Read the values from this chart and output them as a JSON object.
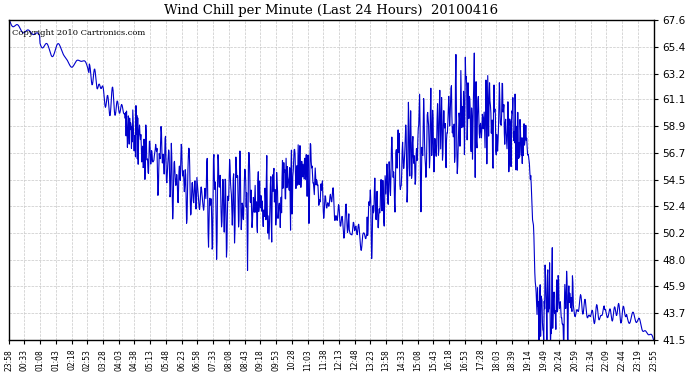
{
  "title": "Wind Chill per Minute (Last 24 Hours)  20100416",
  "copyright_text": "Copyright 2010 Cartronics.com",
  "line_color": "#0000CC",
  "background_color": "#ffffff",
  "grid_color": "#c8c8c8",
  "ylim": [
    41.5,
    67.6
  ],
  "yticks": [
    41.5,
    43.7,
    45.9,
    48.0,
    50.2,
    52.4,
    54.5,
    56.7,
    58.9,
    61.1,
    63.2,
    65.4,
    67.6
  ],
  "total_minutes": 1440,
  "x_tick_labels": [
    "23:58",
    "00:33",
    "01:08",
    "01:43",
    "02:18",
    "02:53",
    "03:28",
    "04:03",
    "04:38",
    "05:13",
    "05:48",
    "06:23",
    "06:58",
    "07:33",
    "08:08",
    "08:43",
    "09:18",
    "09:53",
    "10:28",
    "11:03",
    "11:38",
    "12:13",
    "12:48",
    "13:23",
    "13:58",
    "14:33",
    "15:08",
    "15:43",
    "16:18",
    "16:53",
    "17:28",
    "18:03",
    "18:39",
    "19:14",
    "19:49",
    "20:24",
    "20:59",
    "21:34",
    "22:09",
    "22:44",
    "23:19",
    "23:55"
  ]
}
